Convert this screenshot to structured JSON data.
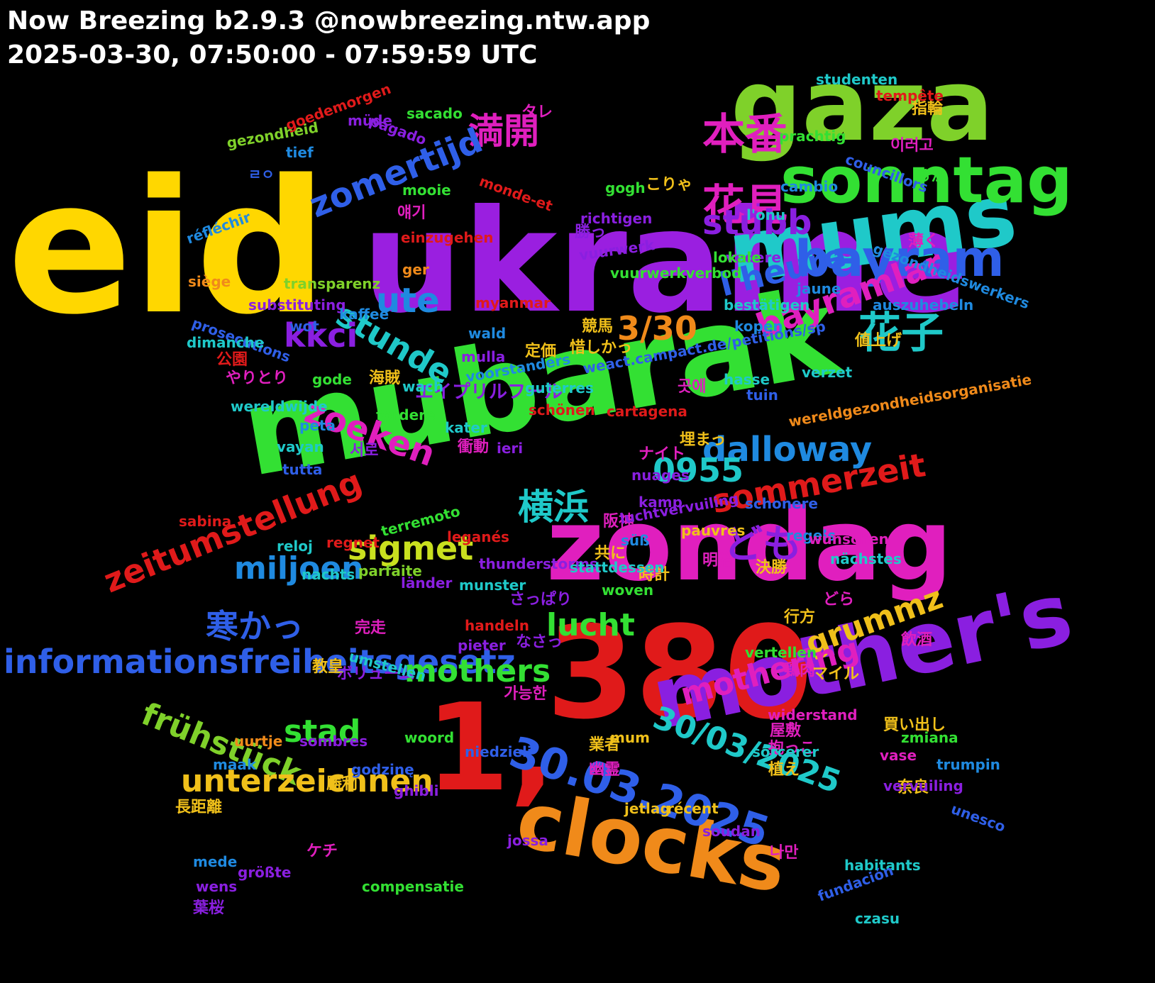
{
  "header": {
    "title": "Now Breezing b2.9.3 @nowbreezing.ntw.app",
    "subtitle": "2025-03-30, 07:50:00 - 07:59:59 UTC"
  },
  "words": [
    {
      "t": "eid",
      "c": "#FFD700"
    },
    {
      "t": "ukraine",
      "c": "#9A1FE0"
    },
    {
      "t": "mubarak",
      "c": "#33E033"
    },
    {
      "t": "gaza",
      "c": "#7FD12A"
    },
    {
      "t": "380",
      "c": "#E01A1A"
    },
    {
      "t": "zondag",
      "c": "#E01FBE"
    },
    {
      "t": "1,",
      "c": "#E01A1A"
    },
    {
      "t": "mother's",
      "c": "#8A1FE0"
    },
    {
      "t": "mums",
      "c": "#1FC9C9"
    },
    {
      "t": "clocks",
      "c": "#F08A1A"
    },
    {
      "t": "sonntag",
      "c": "#33E033"
    },
    {
      "t": "bayram",
      "c": "#2F5FE8"
    },
    {
      "t": "30.03.2025",
      "c": "#2F5FE8"
    },
    {
      "t": "本番",
      "c": "#E01FBE"
    },
    {
      "t": "満開",
      "c": "#E01FBE"
    },
    {
      "t": "花見",
      "c": "#E01FBE"
    },
    {
      "t": "花子",
      "c": "#1FC9C9"
    },
    {
      "t": "zomertijd",
      "c": "#2F5FE8"
    },
    {
      "t": "stubb",
      "c": "#8A1FE0"
    },
    {
      "t": "ute",
      "c": "#1F8AE0"
    },
    {
      "t": "bayramlar",
      "c": "#E01FBE"
    },
    {
      "t": "stunde",
      "c": "#1FC9C9"
    },
    {
      "t": "kkci",
      "c": "#8A1FE0"
    },
    {
      "t": "l'heure",
      "c": "#2F5FE8"
    },
    {
      "t": "3/30",
      "c": "#F08A1A"
    },
    {
      "t": "zoeken",
      "c": "#E01FBE"
    },
    {
      "t": "dalloway",
      "c": "#1F8AE0"
    },
    {
      "t": "0955",
      "c": "#1FC9C9"
    },
    {
      "t": "sommerzeit",
      "c": "#E01A1A"
    },
    {
      "t": "横浜",
      "c": "#1FC9C9"
    },
    {
      "t": "ども",
      "c": "#8A1FE0"
    },
    {
      "t": "zeitumstellung",
      "c": "#E01A1A"
    },
    {
      "t": "miljoen",
      "c": "#1F8AE0"
    },
    {
      "t": "sigmet",
      "c": "#C9E01F"
    },
    {
      "t": "寒かっ",
      "c": "#2F5FE8"
    },
    {
      "t": "lucht",
      "c": "#33E033"
    },
    {
      "t": "grummz",
      "c": "#F0C01A"
    },
    {
      "t": "informationsfreiheitsgesetz",
      "c": "#2F5FE8"
    },
    {
      "t": "mothering",
      "c": "#E01FBE"
    },
    {
      "t": "mothers",
      "c": "#33E033"
    },
    {
      "t": "frühstück",
      "c": "#7FD12A"
    },
    {
      "t": "stad",
      "c": "#33E033"
    },
    {
      "t": "30/03/2025",
      "c": "#1FC9C9"
    },
    {
      "t": "unterzeichnen",
      "c": "#F0C01A"
    },
    {
      "t": "タレ",
      "c": "#E01FBE"
    },
    {
      "t": "指輪",
      "c": "#F0C01A"
    },
    {
      "t": "이러고",
      "c": "#E01FBE"
    },
    {
      "t": "ㄹㅇ",
      "c": "#2F5FE8"
    },
    {
      "t": "ろか",
      "c": "#33E033"
    },
    {
      "t": "こりゃ",
      "c": "#F0C01A"
    },
    {
      "t": "얘기",
      "c": "#E01FBE"
    },
    {
      "t": "勝っ",
      "c": "#8A1FE0"
    },
    {
      "t": "薄く",
      "c": "#E01FBE"
    },
    {
      "t": "競馬",
      "c": "#F0C01A"
    },
    {
      "t": "惜しかっ",
      "c": "#F0C01A"
    },
    {
      "t": "値上げ",
      "c": "#F0C01A"
    },
    {
      "t": "定価",
      "c": "#F0C01A"
    },
    {
      "t": "公園",
      "c": "#E01A1A"
    },
    {
      "t": "やりとり",
      "c": "#E01FBE"
    },
    {
      "t": "海賊",
      "c": "#F0C01A"
    },
    {
      "t": "エイプリルフール",
      "c": "#8A1FE0"
    },
    {
      "t": "곳에",
      "c": "#E01FBE"
    },
    {
      "t": "埋まっ",
      "c": "#F0C01A"
    },
    {
      "t": "衝動",
      "c": "#E01FBE"
    },
    {
      "t": "서로",
      "c": "#8A1FE0"
    },
    {
      "t": "ナイト",
      "c": "#E01FBE"
    },
    {
      "t": "阪神",
      "c": "#E01FBE"
    },
    {
      "t": "共に",
      "c": "#F0C01A"
    },
    {
      "t": "明治",
      "c": "#E01FBE"
    },
    {
      "t": "時計",
      "c": "#F0C01A"
    },
    {
      "t": "決勝",
      "c": "#F0C01A"
    },
    {
      "t": "さっぱり",
      "c": "#8A1FE0"
    },
    {
      "t": "どら",
      "c": "#E01FBE"
    },
    {
      "t": "完走",
      "c": "#E01FBE"
    },
    {
      "t": "行方",
      "c": "#F0C01A"
    },
    {
      "t": "なさっ",
      "c": "#8A1FE0"
    },
    {
      "t": "飲酒",
      "c": "#E01FBE"
    },
    {
      "t": "教皇",
      "c": "#F0C01A"
    },
    {
      "t": "ボリューム",
      "c": "#8A1FE0"
    },
    {
      "t": "鶏肉",
      "c": "#E01FBE"
    },
    {
      "t": "マイル",
      "c": "#F0C01A"
    },
    {
      "t": "가능한",
      "c": "#E01FBE"
    },
    {
      "t": "屋敷",
      "c": "#E01FBE"
    },
    {
      "t": "買い出し",
      "c": "#F0C01A"
    },
    {
      "t": "抱っこ",
      "c": "#E01FBE"
    },
    {
      "t": "業者",
      "c": "#F0C01A"
    },
    {
      "t": "植え",
      "c": "#F0C01A"
    },
    {
      "t": "幽霊",
      "c": "#E01FBE"
    },
    {
      "t": "勝利",
      "c": "#F0C01A"
    },
    {
      "t": "奈良",
      "c": "#F0C01A"
    },
    {
      "t": "長距離",
      "c": "#F0C01A"
    },
    {
      "t": "나만",
      "c": "#E01FBE"
    },
    {
      "t": "ケチ",
      "c": "#E01FBE"
    },
    {
      "t": "葉桜",
      "c": "#8A1FE0"
    },
    {
      "t": "studenten",
      "c": "#1FC9C9"
    },
    {
      "t": "tempête",
      "c": "#E01A1A"
    },
    {
      "t": "sacado",
      "c": "#33E033"
    },
    {
      "t": "gezondheid",
      "c": "#7FD12A"
    },
    {
      "t": "goedemorgen",
      "c": "#E01A1A"
    },
    {
      "t": "pagado",
      "c": "#8A1FE0"
    },
    {
      "t": "müde",
      "c": "#8A1FE0"
    },
    {
      "t": "prachtig",
      "c": "#33E033"
    },
    {
      "t": "tief",
      "c": "#1F8AE0"
    },
    {
      "t": "councillors",
      "c": "#2F5FE8"
    },
    {
      "t": "cambio",
      "c": "#1F8AE0"
    },
    {
      "t": "monde-et",
      "c": "#E01A1A"
    },
    {
      "t": "mooie",
      "c": "#33E033"
    },
    {
      "t": "gogh",
      "c": "#33E033"
    },
    {
      "t": "réfléchir",
      "c": "#1F8AE0"
    },
    {
      "t": "l'onu",
      "c": "#1FC9C9"
    },
    {
      "t": "richtigen",
      "c": "#8A1FE0"
    },
    {
      "t": "einzugehen",
      "c": "#E01A1A"
    },
    {
      "t": "gezondheidswerkers",
      "c": "#1F8AE0"
    },
    {
      "t": "vuurwerk",
      "c": "#8A1FE0"
    },
    {
      "t": "vedere",
      "c": "#8A1FE0"
    },
    {
      "t": "lokale",
      "c": "#33E033"
    },
    {
      "t": "ger",
      "c": "#F08A1A"
    },
    {
      "t": "siège",
      "c": "#F08A1A"
    },
    {
      "t": "transparenz",
      "c": "#7FD12A"
    },
    {
      "t": "vuurwerkverbod",
      "c": "#33E033"
    },
    {
      "t": "jaune",
      "c": "#1F8AE0"
    },
    {
      "t": "substituting",
      "c": "#8A1FE0"
    },
    {
      "t": "bestätigen",
      "c": "#1FC9C9"
    },
    {
      "t": "prosecutions",
      "c": "#2F5FE8"
    },
    {
      "t": "wot",
      "c": "#2F5FE8"
    },
    {
      "t": "kaffee",
      "c": "#1F8AE0"
    },
    {
      "t": "auszuhebeln",
      "c": "#1F8AE0"
    },
    {
      "t": "myanmar",
      "c": "#E01A1A"
    },
    {
      "t": "kopen",
      "c": "#1F8AE0"
    },
    {
      "t": "dimanche",
      "c": "#1FC9C9"
    },
    {
      "t": "wald",
      "c": "#1F8AE0"
    },
    {
      "t": "mulla",
      "c": "#8A1FE0"
    },
    {
      "t": "weact.campact.de/petitions/sp",
      "c": "#2F5FE8"
    },
    {
      "t": "gode",
      "c": "#33E033"
    },
    {
      "t": "wach",
      "c": "#1FC9C9"
    },
    {
      "t": "verzet",
      "c": "#1FC9C9"
    },
    {
      "t": "voorstanders",
      "c": "#1F8AE0"
    },
    {
      "t": "hasse",
      "c": "#1FC9C9"
    },
    {
      "t": "guterres",
      "c": "#1FC9C9"
    },
    {
      "t": "wereldwijde",
      "c": "#1FC9C9"
    },
    {
      "t": "tuin",
      "c": "#2F5FE8"
    },
    {
      "t": "schönen",
      "c": "#E01A1A"
    },
    {
      "t": "cartagena",
      "c": "#E01A1A"
    },
    {
      "t": "wereldgezondheidsorganisatie",
      "c": "#F08A1A"
    },
    {
      "t": "fordere",
      "c": "#33E033"
    },
    {
      "t": "peta",
      "c": "#1F8AE0"
    },
    {
      "t": "kater",
      "c": "#1FC9C9"
    },
    {
      "t": "vayan",
      "c": "#1FC9C9"
    },
    {
      "t": "ieri",
      "c": "#8A1FE0"
    },
    {
      "t": "tutta",
      "c": "#2F5FE8"
    },
    {
      "t": "nuages",
      "c": "#8A1FE0"
    },
    {
      "t": "kamp",
      "c": "#8A1FE0"
    },
    {
      "t": "schonere",
      "c": "#2F5FE8"
    },
    {
      "t": "sabina",
      "c": "#E01A1A"
    },
    {
      "t": "luchtvervuiling",
      "c": "#8A1FE0"
    },
    {
      "t": "pauvres",
      "c": "#F0C01A"
    },
    {
      "t": "reloj",
      "c": "#1FC9C9"
    },
    {
      "t": "terremoto",
      "c": "#33E033"
    },
    {
      "t": "leganés",
      "c": "#E01A1A"
    },
    {
      "t": "regels",
      "c": "#1F8AE0"
    },
    {
      "t": "wünschen",
      "c": "#E01FBE"
    },
    {
      "t": "regnet",
      "c": "#E01A1A"
    },
    {
      "t": "süß",
      "c": "#1F8AE0"
    },
    {
      "t": "nächstes",
      "c": "#1FC9C9"
    },
    {
      "t": "thunderstorms",
      "c": "#8A1FE0"
    },
    {
      "t": "stattdessen",
      "c": "#1FC9C9"
    },
    {
      "t": "nachts",
      "c": "#1FC9C9"
    },
    {
      "t": "parfaite",
      "c": "#7FD12A"
    },
    {
      "t": "länder",
      "c": "#8A1FE0"
    },
    {
      "t": "munster",
      "c": "#1FC9C9"
    },
    {
      "t": "woven",
      "c": "#33E033"
    },
    {
      "t": "handeln",
      "c": "#E01A1A"
    },
    {
      "t": "pieter",
      "c": "#8A1FE0"
    },
    {
      "t": "vertellen",
      "c": "#33E033"
    },
    {
      "t": "umstellen",
      "c": "#1FC9C9"
    },
    {
      "t": "widerstand",
      "c": "#E01FBE"
    },
    {
      "t": "woord",
      "c": "#33E033"
    },
    {
      "t": "uurtje",
      "c": "#F08A1A"
    },
    {
      "t": "sombres",
      "c": "#8A1FE0"
    },
    {
      "t": "zmiana",
      "c": "#33E033"
    },
    {
      "t": "sorcerer",
      "c": "#1FC9C9"
    },
    {
      "t": "maak",
      "c": "#1F8AE0"
    },
    {
      "t": "niedzieli",
      "c": "#2F5FE8"
    },
    {
      "t": "trumpin",
      "c": "#1F8AE0"
    },
    {
      "t": "vase",
      "c": "#E01FBE"
    },
    {
      "t": "godzinę",
      "c": "#2F5FE8"
    },
    {
      "t": "vervuiling",
      "c": "#8A1FE0"
    },
    {
      "t": "ghibli",
      "c": "#8A1FE0"
    },
    {
      "t": "jetlag",
      "c": "#F0C01A"
    },
    {
      "t": "récent",
      "c": "#F0C01A"
    },
    {
      "t": "soudan",
      "c": "#8A1FE0"
    },
    {
      "t": "unesco",
      "c": "#2F5FE8"
    },
    {
      "t": "jossa",
      "c": "#8A1FE0"
    },
    {
      "t": "mede",
      "c": "#1F8AE0"
    },
    {
      "t": "größte",
      "c": "#8A1FE0"
    },
    {
      "t": "habitants",
      "c": "#1FC9C9"
    },
    {
      "t": "wens",
      "c": "#8A1FE0"
    },
    {
      "t": "compensatie",
      "c": "#33E033"
    },
    {
      "t": "fundación",
      "c": "#2F5FE8"
    },
    {
      "t": "czasu",
      "c": "#1FC9C9"
    },
    {
      "t": "mum",
      "c": "#F0C01A"
    }
  ]
}
